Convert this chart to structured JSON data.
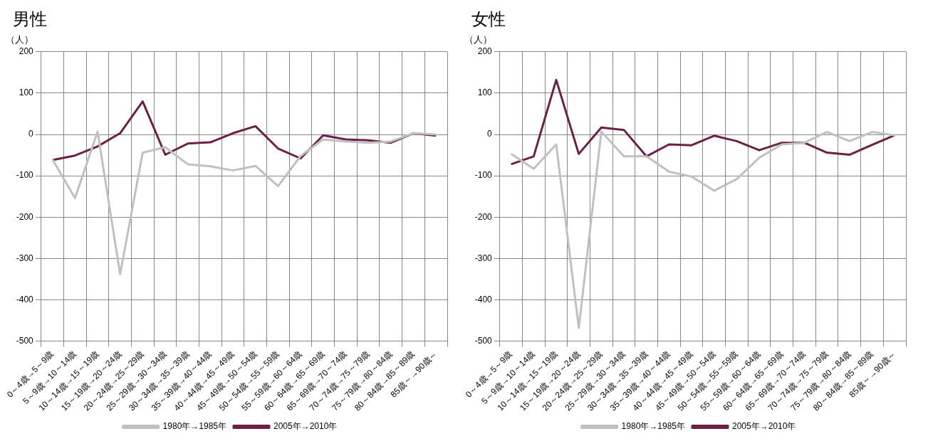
{
  "chart_data": [
    {
      "type": "line",
      "title": "男性",
      "ylabel": "（人）",
      "categories": [
        "0～4歳→5～9歳",
        "5～9歳→10～14歳",
        "10～14歳→15～19歳",
        "15～19歳→20～24歳",
        "20～24歳→25～29歳",
        "25～29歳→30～34歳",
        "30～34歳→35～39歳",
        "35～39歳→40～44歳",
        "40～44歳→45～49歳",
        "45～49歳→50～54歳",
        "50～54歳→55～59歳",
        "55～59歳→60～64歳",
        "60～64歳→65～69歳",
        "65～69歳→70～74歳",
        "70～74歳→75～79歳",
        "75～79歳→80～84歳",
        "80～84歳→85～89歳",
        "85歳～→90歳～"
      ],
      "series": [
        {
          "name": "1980年→1985年",
          "color": "#c0c0c0",
          "values": [
            -60,
            -154,
            7,
            -338,
            -44,
            -31,
            -72,
            -77,
            -87,
            -76,
            -125,
            -52,
            -12,
            -17,
            -20,
            -17,
            3,
            0
          ]
        },
        {
          "name": "2005年→2010年",
          "color": "#6e1f45",
          "values": [
            -62,
            -51,
            -29,
            3,
            80,
            -49,
            -22,
            -19,
            3,
            20,
            -34,
            -58,
            -2,
            -12,
            -14,
            -20,
            3,
            -3
          ]
        }
      ],
      "ylim": [
        -500,
        200
      ],
      "yticks": [
        -500,
        -400,
        -300,
        -200,
        -100,
        0,
        100,
        200
      ],
      "grid": true,
      "legend": "bottom",
      "marker": "none",
      "line_style": "solid"
    },
    {
      "type": "line",
      "title": "女性",
      "ylabel": "（人）",
      "categories": [
        "0～4歳→5～9歳",
        "5～9歳→10～14歳",
        "10～14歳→15～19歳",
        "15～19歳→20～24歳",
        "20～24歳→25～29歳",
        "25～29歳→30～34歳",
        "30～34歳→35～39歳",
        "35～39歳→40～44歳",
        "40～44歳→45～49歳",
        "45～49歳→50～54歳",
        "50～54歳→55～59歳",
        "55～59歳→60～64歳",
        "60～64歳→65～69歳",
        "65～69歳→70～74歳",
        "70～74歳→75～79歳",
        "75～79歳→80～84歳",
        "80～84歳→85～89歳",
        "85歳～→90歳～"
      ],
      "series": [
        {
          "name": "1980年→1985年",
          "color": "#c0c0c0",
          "values": [
            -47,
            -83,
            -24,
            -468,
            7,
            -53,
            -53,
            -90,
            -102,
            -136,
            -108,
            -56,
            -24,
            -20,
            6,
            -16,
            6,
            -2
          ]
        },
        {
          "name": "2005年→2010年",
          "color": "#6e1f45",
          "values": [
            -72,
            -53,
            132,
            -47,
            17,
            11,
            -53,
            -24,
            -26,
            -3,
            -16,
            -38,
            -20,
            -20,
            -44,
            -49,
            -25,
            -2
          ]
        }
      ],
      "ylim": [
        -500,
        200
      ],
      "yticks": [
        -500,
        -400,
        -300,
        -200,
        -100,
        0,
        100,
        200
      ],
      "grid": true,
      "legend": "bottom",
      "marker": "none",
      "line_style": "solid"
    }
  ]
}
